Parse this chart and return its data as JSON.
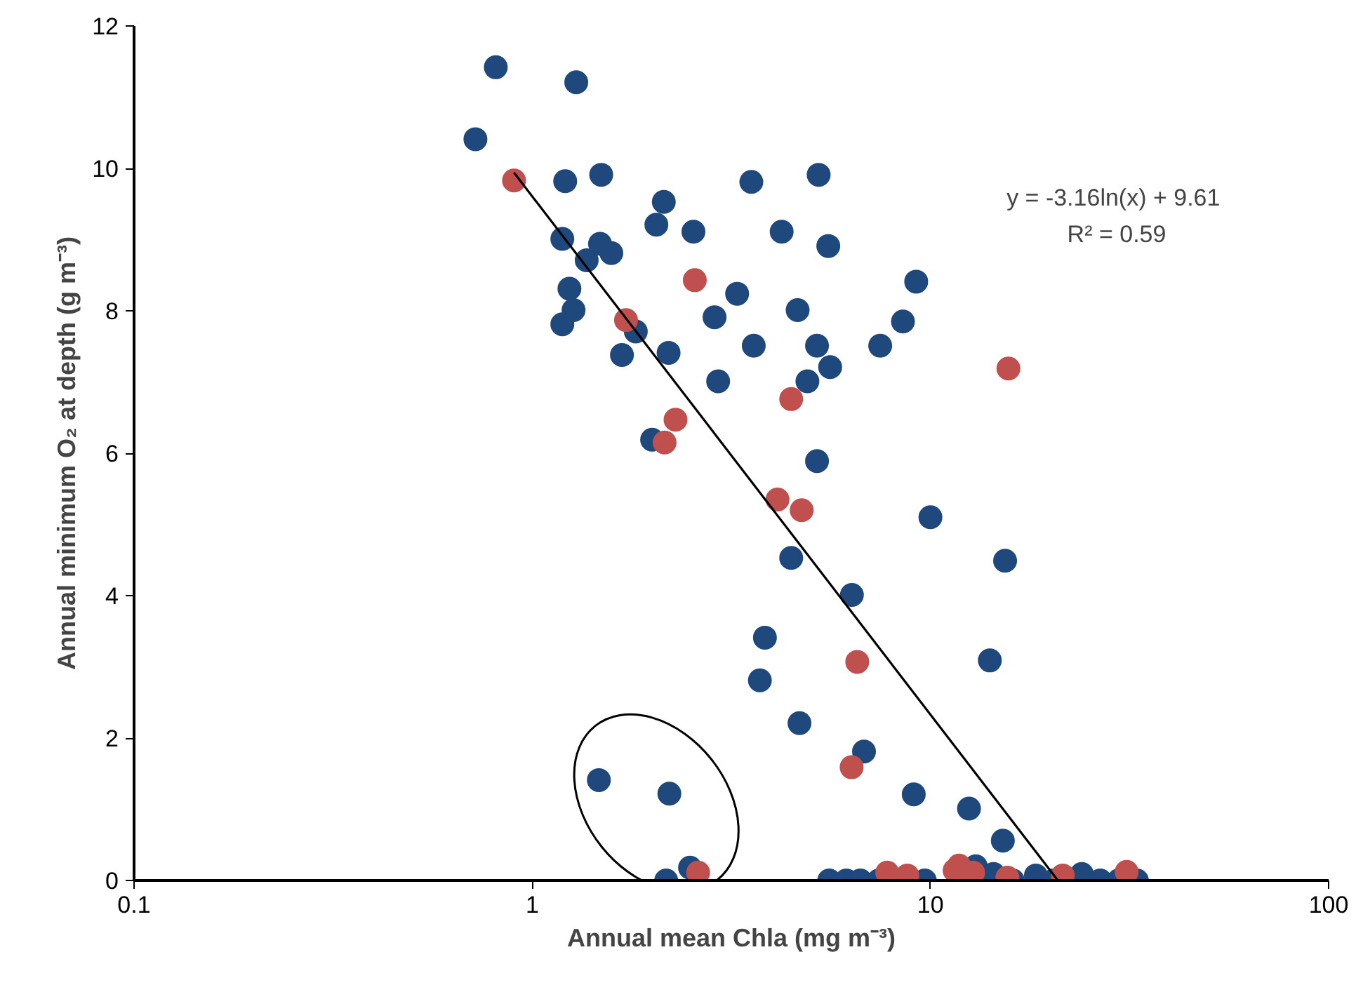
{
  "chart_data": {
    "type": "scatter",
    "xlabel": "Annual mean Chla (mg m⁻³)",
    "ylabel": "Annual minimum O₂ at depth (g m⁻³)",
    "log": "x",
    "xlim": [
      0.1,
      100
    ],
    "xticks": [
      0.1,
      1,
      10,
      100
    ],
    "ylim": [
      0,
      12
    ],
    "yticks": [
      0,
      2,
      4,
      6,
      8,
      10,
      12
    ],
    "grid": false,
    "marker": "circle",
    "annotations": [
      {
        "text": "y = -3.16ln(x)  + 9.61"
      },
      {
        "text": "R² = 0.59"
      }
    ],
    "series": [
      {
        "color": "#1f497d",
        "x": [
          0.81,
          1.29,
          0.72,
          1.21,
          1.49,
          2.14,
          2.05,
          2.54,
          3.55,
          5.24,
          4.23,
          5.54,
          1.19,
          1.48,
          1.58,
          1.37,
          1.24,
          1.27,
          1.19,
          1.82,
          1.68,
          2.2,
          2.93,
          3.27,
          2.87,
          4.64,
          3.6,
          5.19,
          7.48,
          4.91,
          5.6,
          8.53,
          9.21,
          2.0,
          5.19,
          10.0,
          15.4,
          4.47,
          6.35,
          3.84,
          3.73,
          14.1,
          4.69,
          6.81,
          9.08,
          12.5,
          15.2,
          1.47,
          2.21,
          2.49,
          2.17,
          5.57,
          6.15,
          6.67,
          7.42,
          9.68,
          13.0,
          14.4,
          16.1,
          18.4,
          20.4,
          24.0,
          26.7,
          29.7,
          33.0
        ],
        "values": [
          11.42,
          11.21,
          10.41,
          9.82,
          9.91,
          9.53,
          9.21,
          9.11,
          9.81,
          9.91,
          9.11,
          8.91,
          9.01,
          8.94,
          8.81,
          8.71,
          8.31,
          8.01,
          7.81,
          7.71,
          7.38,
          7.41,
          7.01,
          8.24,
          7.91,
          8.01,
          7.51,
          7.51,
          7.51,
          7.01,
          7.21,
          7.85,
          8.41,
          6.19,
          5.89,
          5.1,
          4.49,
          4.53,
          4.01,
          3.41,
          2.81,
          3.09,
          2.21,
          1.81,
          1.21,
          1.01,
          0.56,
          1.41,
          1.22,
          0.18,
          0,
          0,
          0,
          0,
          0,
          0,
          0.2,
          0.09,
          0,
          0.07,
          0,
          0.09,
          0,
          0,
          0
        ]
      },
      {
        "color": "#c0504d",
        "x": [
          0.9,
          2.56,
          1.72,
          2.29,
          2.15,
          4.47,
          15.7,
          4.13,
          4.75,
          6.55,
          6.34,
          2.61,
          7.79,
          8.75,
          11.5,
          11.8,
          12.8,
          15.6,
          21.5,
          31.1
        ],
        "values": [
          9.83,
          8.43,
          7.87,
          6.47,
          6.15,
          6.76,
          7.19,
          5.35,
          5.2,
          3.07,
          1.59,
          0.11,
          0.11,
          0.07,
          0.14,
          0.21,
          0.11,
          0.04,
          0.07,
          0.12
        ]
      },
      {
        "type": "line",
        "color": "#000000",
        "marker": "none",
        "x": [
          0.9,
          20.9
        ],
        "values": [
          9.94,
          0.0
        ]
      }
    ]
  }
}
